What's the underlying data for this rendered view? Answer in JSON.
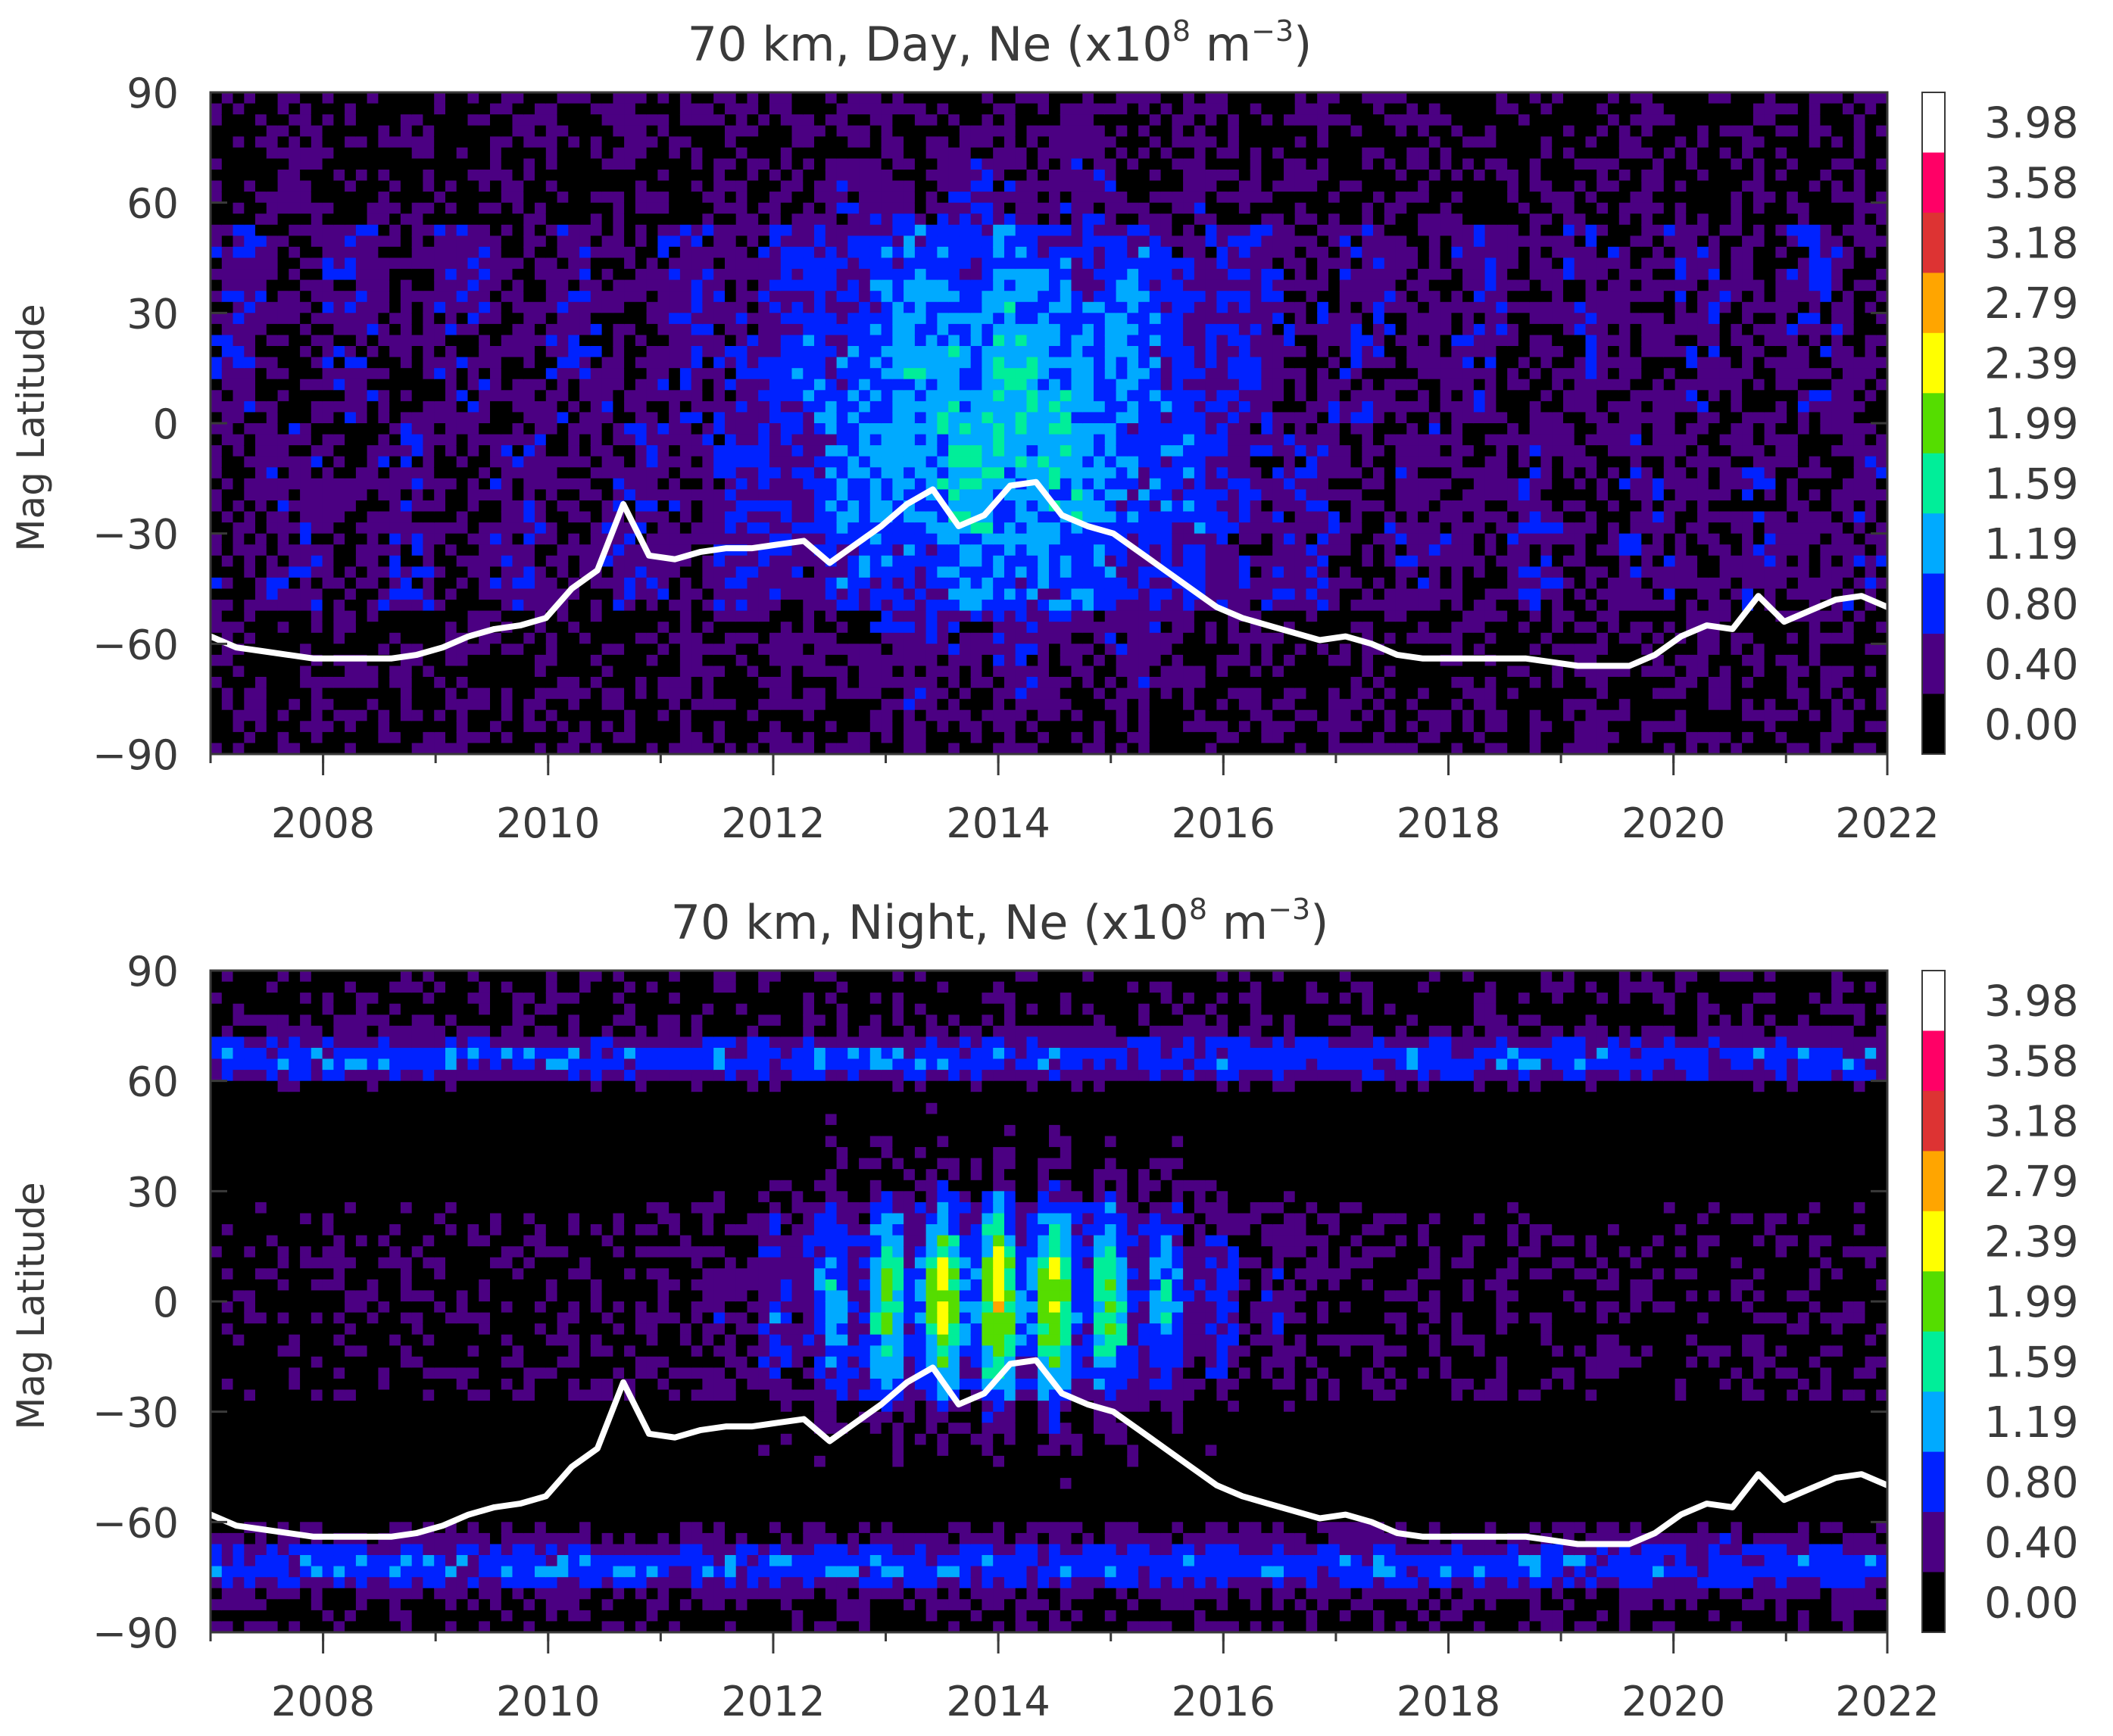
{
  "chart_data": [
    {
      "type": "heatmap",
      "title": "70 km, Day, Ne (x10",
      "title_exp": "8",
      "title_unit": " m",
      "title_unit_exp": "−3",
      "title_close": ")",
      "ylabel": "Mag Latitude",
      "xlabel": "",
      "xlim": [
        2007.0,
        2021.9
      ],
      "ylim": [
        -90,
        90
      ],
      "x_ticks": [
        "2008",
        "2010",
        "2012",
        "2014",
        "2016",
        "2018",
        "2020",
        "2022"
      ],
      "y_ticks": [
        "90",
        "60",
        "30",
        "0",
        "−30",
        "−60",
        "−90"
      ],
      "colorbar_levels": [
        "3.98",
        "3.58",
        "3.18",
        "2.79",
        "2.39",
        "1.99",
        "1.59",
        "1.19",
        "0.80",
        "0.40",
        "0.00"
      ],
      "sunspot_line_lat": [
        -58,
        -61,
        -62,
        -63,
        -64,
        -64,
        -64,
        -64,
        -63,
        -61,
        -58,
        -56,
        -55,
        -53,
        -45,
        -40,
        -22,
        -36,
        -37,
        -35,
        -34,
        -34,
        -33,
        -32,
        -38,
        -33,
        -28,
        -22,
        -18,
        -28,
        -25,
        -17,
        -16,
        -25,
        -28,
        -30,
        -35,
        -40,
        -45,
        -50,
        -53,
        -55,
        -57,
        -59,
        -58,
        -60,
        -63,
        -64,
        -64,
        -64,
        -64,
        -64,
        -65,
        -66,
        -66,
        -66,
        -63,
        -58,
        -55,
        -56,
        -47,
        -54,
        -51,
        -48,
        -47,
        -50
      ]
    },
    {
      "type": "heatmap",
      "title": "70 km, Night, Ne (x10",
      "title_exp": "8",
      "title_unit": " m",
      "title_unit_exp": "−3",
      "title_close": ")",
      "ylabel": "Mag Latitude",
      "xlabel": "",
      "xlim": [
        2007.0,
        2021.9
      ],
      "ylim": [
        -90,
        90
      ],
      "x_ticks": [
        "2008",
        "2010",
        "2012",
        "2014",
        "2016",
        "2018",
        "2020",
        "2022"
      ],
      "y_ticks": [
        "90",
        "60",
        "30",
        "0",
        "−30",
        "−60",
        "−90"
      ],
      "colorbar_levels": [
        "3.98",
        "3.58",
        "3.18",
        "2.79",
        "2.39",
        "1.99",
        "1.59",
        "1.19",
        "0.80",
        "0.40",
        "0.00"
      ],
      "sunspot_line_lat": [
        -58,
        -61,
        -62,
        -63,
        -64,
        -64,
        -64,
        -64,
        -63,
        -61,
        -58,
        -56,
        -55,
        -53,
        -45,
        -40,
        -22,
        -36,
        -37,
        -35,
        -34,
        -34,
        -33,
        -32,
        -38,
        -33,
        -28,
        -22,
        -18,
        -28,
        -25,
        -17,
        -16,
        -25,
        -28,
        -30,
        -35,
        -40,
        -45,
        -50,
        -53,
        -55,
        -57,
        -59,
        -58,
        -60,
        -63,
        -64,
        -64,
        -64,
        -64,
        -64,
        -65,
        -66,
        -66,
        -66,
        -63,
        -58,
        -55,
        -56,
        -47,
        -54,
        -51,
        -48,
        -47,
        -50
      ]
    }
  ],
  "colors": {
    "scale": [
      "#000000",
      "#4b0082",
      "#0022ff",
      "#00aaff",
      "#00ee99",
      "#55dd00",
      "#ffff00",
      "#ffa500",
      "#dd3333",
      "#ff0066",
      "#ffffff"
    ],
    "line": "#ffffff",
    "axis": "#3a3a3a"
  }
}
